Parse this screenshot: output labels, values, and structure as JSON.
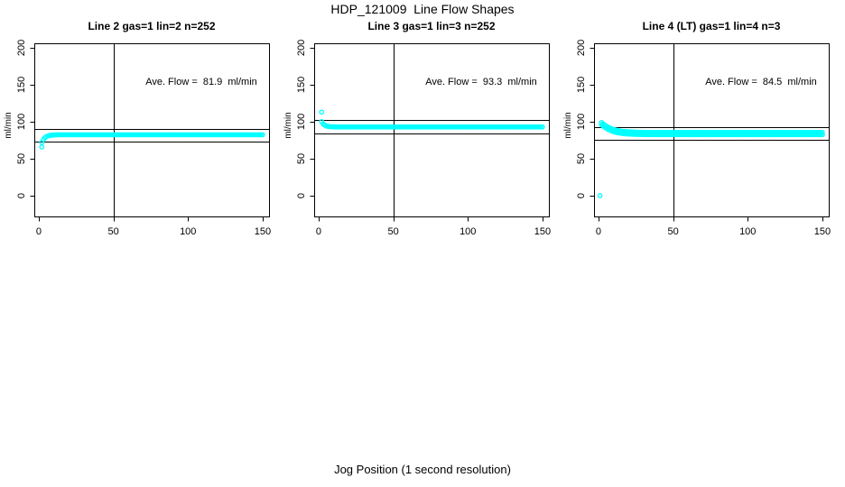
{
  "chart_data": {
    "type": "scatter",
    "title": "HDP_121009  Line Flow Shapes",
    "xlabel": "Jog Position (1 second resolution)",
    "ylabel": "ml/min",
    "xlim": [
      -3,
      154.3
    ],
    "ylim": [
      -28,
      206
    ],
    "x_ticks": [
      0,
      50,
      100,
      150
    ],
    "y_ticks": [
      0,
      50,
      100,
      150,
      200
    ],
    "grid": false,
    "legend": "none",
    "point_color": "#00ffff",
    "axis_color": "#000000",
    "vline_x": 50,
    "plots": [
      {
        "title": "Line 2 gas=1 lin=2 n=252",
        "line": 2,
        "gas": 1,
        "lin": 2,
        "n": 252,
        "annotation": "Ave. Flow =  81.9  ml/min",
        "ave_flow_ml_min": 81.9,
        "tolerance_lines": [
          90.1,
          73.7
        ],
        "outlier_points": [
          [
            2,
            66
          ]
        ],
        "curve_points": [
          [
            2,
            72.0
          ],
          [
            3,
            75.8
          ],
          [
            4,
            78.2
          ],
          [
            5,
            79.7
          ],
          [
            6,
            80.7
          ],
          [
            7,
            81.3
          ],
          [
            8,
            81.7
          ],
          [
            9,
            82.0
          ],
          [
            10,
            82.1
          ],
          [
            11,
            82.2
          ],
          [
            12,
            82.3
          ]
        ],
        "plateau": {
          "y": 82.4,
          "x_from": 13,
          "x_to": 150
        },
        "band_halfwidth": 0
      },
      {
        "title": "Line 3 gas=1 lin=3 n=252",
        "line": 3,
        "gas": 1,
        "lin": 3,
        "n": 252,
        "annotation": "Ave. Flow =  93.3  ml/min",
        "ave_flow_ml_min": 93.3,
        "tolerance_lines": [
          102.6,
          84.0
        ],
        "outlier_points": [
          [
            2,
            113
          ]
        ],
        "curve_points": [
          [
            2,
            100.2
          ],
          [
            3,
            97.1
          ],
          [
            4,
            95.4
          ],
          [
            5,
            94.4
          ],
          [
            6,
            93.8
          ],
          [
            7,
            93.4
          ],
          [
            8,
            93.3
          ],
          [
            9,
            93.2
          ],
          [
            10,
            93.1
          ]
        ],
        "plateau": {
          "y": 93.0,
          "x_from": 11,
          "x_to": 150
        },
        "band_halfwidth": 0
      },
      {
        "title": "Line 4 (LT) gas=1 lin=4 n=3",
        "line": 4,
        "line_note": "LT",
        "gas": 1,
        "lin": 4,
        "n": 3,
        "annotation": "Ave. Flow =  84.5  ml/min",
        "ave_flow_ml_min": 84.5,
        "tolerance_lines": [
          93.0,
          76.1
        ],
        "outlier_points": [
          [
            1,
            0
          ]
        ],
        "curve_points": [
          [
            2,
            97.5
          ],
          [
            3,
            95.7
          ],
          [
            4,
            94.2
          ],
          [
            5,
            92.9
          ],
          [
            6,
            91.7
          ],
          [
            7,
            90.6
          ],
          [
            8,
            89.7
          ],
          [
            9,
            88.9
          ],
          [
            10,
            88.2
          ],
          [
            11,
            87.6
          ],
          [
            12,
            87.0
          ],
          [
            13,
            86.6
          ],
          [
            14,
            86.2
          ],
          [
            15,
            85.9
          ],
          [
            16,
            85.6
          ],
          [
            17,
            85.4
          ],
          [
            18,
            85.2
          ],
          [
            19,
            85.0
          ],
          [
            20,
            84.9
          ],
          [
            21,
            84.8
          ],
          [
            22,
            84.7
          ],
          [
            23,
            84.6
          ],
          [
            24,
            84.5
          ],
          [
            25,
            84.5
          ],
          [
            26,
            84.4
          ],
          [
            27,
            84.3
          ],
          [
            28,
            84.3
          ],
          [
            29,
            84.2
          ],
          [
            30,
            84.2
          ],
          [
            31,
            84.1
          ],
          [
            32,
            84.1
          ],
          [
            33,
            84.1
          ],
          [
            34,
            84.0
          ]
        ],
        "plateau": {
          "y": 84.0,
          "x_from": 35,
          "x_to": 150
        },
        "band_halfwidth": 1.5
      }
    ]
  }
}
